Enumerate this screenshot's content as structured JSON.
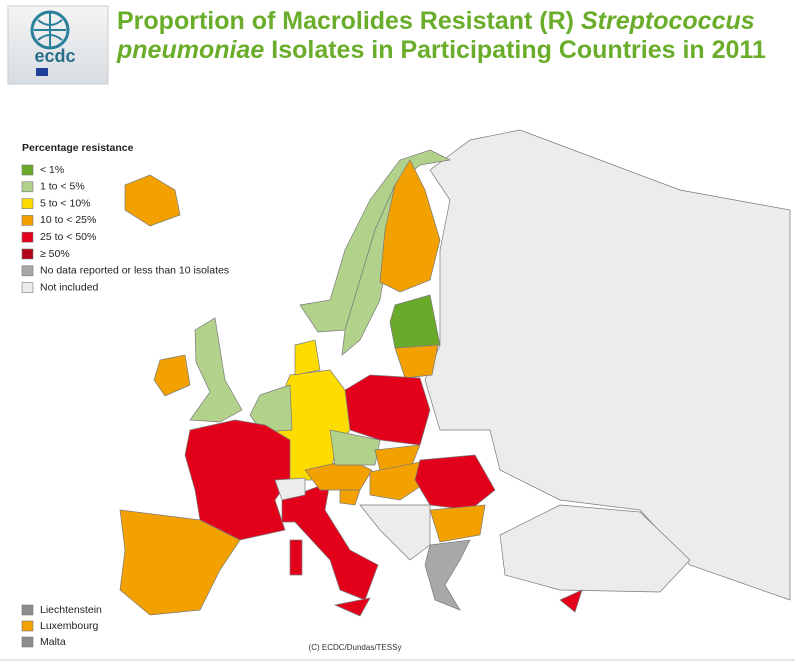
{
  "logo": {
    "text": "ecdc"
  },
  "title_parts": [
    "Proportion of Macrolides Resistant (R)",
    "Streptococcus",
    "pneumoniae",
    "Isolates in Participating Countries in 2011"
  ],
  "legend": {
    "title": "Percentage resistance",
    "items": [
      {
        "label": "< 1%",
        "color": "#6aaa2a"
      },
      {
        "label": "1 to < 5%",
        "color": "#b2d28c"
      },
      {
        "label": "5 to < 10%",
        "color": "#ffdc00"
      },
      {
        "label": "10 to < 25%",
        "color": "#f2a100"
      },
      {
        "label": "25 to < 50%",
        "color": "#e2001a"
      },
      {
        "label": "≥ 50%",
        "color": "#b0001a"
      },
      {
        "label": "No data reported or less than 10 isolates",
        "color": "#a8a8a8"
      },
      {
        "label": "Not included",
        "color": "#ececec"
      }
    ]
  },
  "small_countries": [
    {
      "name": "Liechtenstein",
      "color": "#8c8c8c"
    },
    {
      "name": "Luxembourg",
      "color": "#f2a100"
    },
    {
      "name": "Malta",
      "color": "#8c8c8c"
    }
  ],
  "copyright": "(C) ECDC/Dundas/TESSy"
}
